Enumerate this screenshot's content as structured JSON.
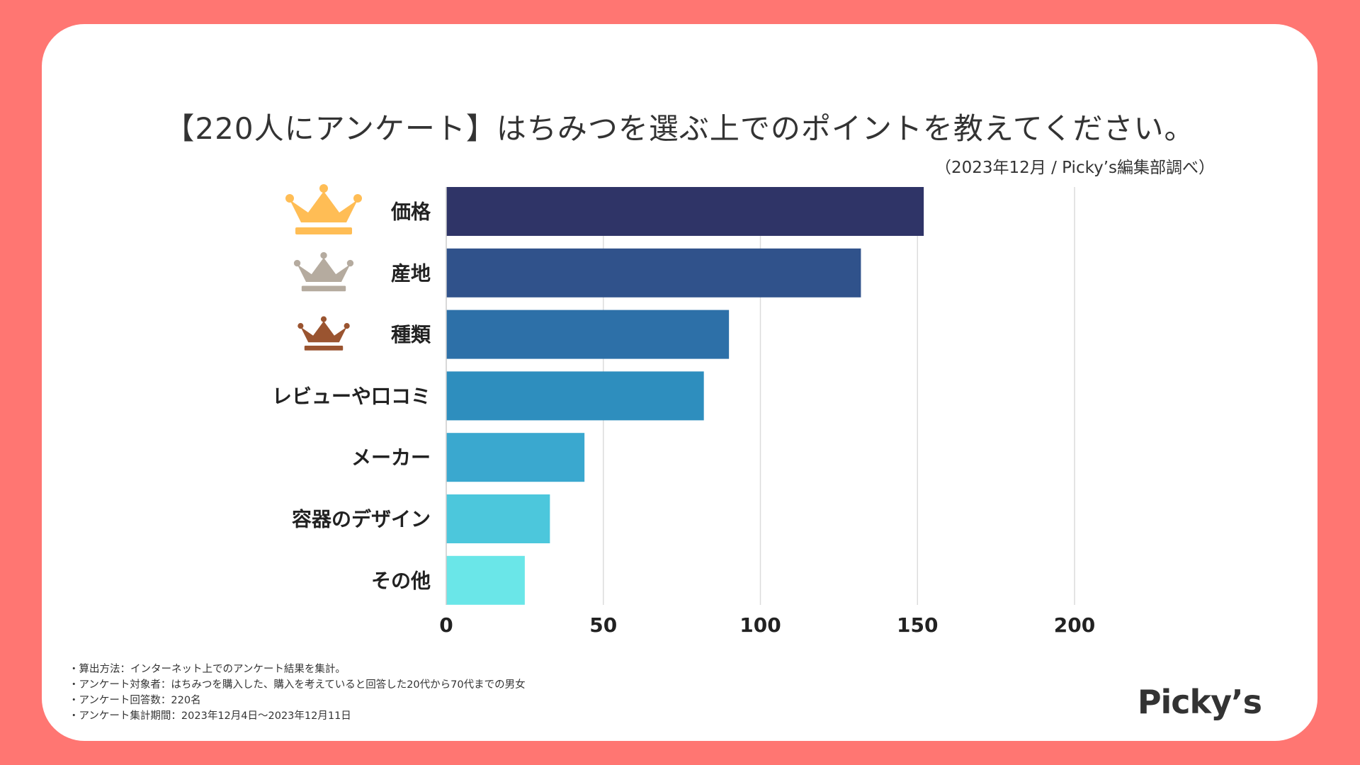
{
  "header": {
    "title": "【220人にアンケート】はちみつを選ぶ上でのポイントを教えてください。",
    "subtitle": "（2023年12月 / Picky’s編集部調べ）"
  },
  "colors": {
    "background": "#ff7672",
    "card": "#ffffff",
    "bars": [
      "#2f3467",
      "#30528b",
      "#2d70a8",
      "#2e8ebe",
      "#3aa8cf",
      "#4cc7dc",
      "#6ae6e8"
    ],
    "crowns": [
      "#ffbd55",
      "#b5ab9f",
      "#9a5430"
    ]
  },
  "chart_data": {
    "type": "bar",
    "orientation": "horizontal",
    "categories": [
      "価格",
      "産地",
      "種類",
      "レビューや口コミ",
      "メーカー",
      "容器のデザイン",
      "その他"
    ],
    "values": [
      152,
      132,
      90,
      82,
      44,
      33,
      25
    ],
    "xlim": [
      0,
      200
    ],
    "xticks": [
      0,
      50,
      100,
      150,
      200
    ],
    "grid": true,
    "rank_icons": [
      "crown-gold-icon",
      "crown-silver-icon",
      "crown-bronze-icon"
    ]
  },
  "notes": [
    "・算出方法：インターネット上でのアンケート結果を集計。",
    "・アンケート対象者：はちみつを購入した、購入を考えていると回答した20代から70代までの男女",
    "・アンケート回答数：220名",
    "・アンケート集計期間：2023年12月4日〜2023年12月11日"
  ],
  "logo": "Picky’s"
}
